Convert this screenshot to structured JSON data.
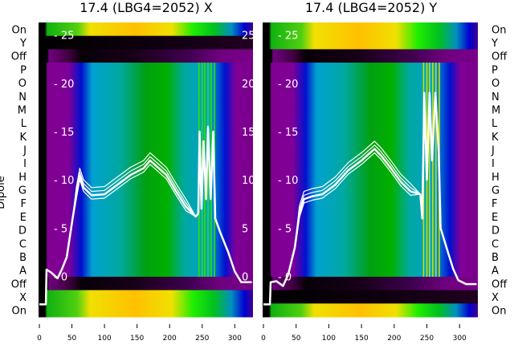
{
  "chart_data": [
    {
      "type": "heatmap",
      "title": "17.4 (LBG4=2052) X",
      "ylabel": "Dipole",
      "row_labels": [
        "On",
        "Y",
        "Off",
        "P",
        "O",
        "N",
        "M",
        "L",
        "K",
        "J",
        "I",
        "H",
        "G",
        "F",
        "E",
        "D",
        "C",
        "B",
        "A",
        "Off",
        "X",
        "On"
      ],
      "row_kinds": [
        "hot",
        "dark",
        "darkpurple",
        "beam",
        "beam",
        "beam",
        "beam",
        "beam",
        "beam",
        "beam",
        "beam",
        "beam",
        "beam",
        "beam",
        "beam",
        "beam",
        "beam",
        "beam",
        "beam",
        "darkpurple",
        "hot",
        "hot"
      ],
      "x_ticks": [
        0,
        50,
        100,
        150,
        200,
        250,
        300
      ],
      "xlim": [
        0,
        328
      ],
      "overlay_y_ticks": [
        0,
        5,
        10,
        15,
        20,
        25
      ],
      "overlay_ylim": [
        -4.2,
        26.3
      ],
      "overlay_line": {
        "color": "#ffffff",
        "points": [
          [
            0,
            -2.9
          ],
          [
            10,
            -2.9
          ],
          [
            11,
            0.7
          ],
          [
            18,
            0.4
          ],
          [
            28,
            -0.2
          ],
          [
            35,
            0.8
          ],
          [
            42,
            2
          ],
          [
            50,
            5.5
          ],
          [
            57,
            8.5
          ],
          [
            62,
            10.4
          ],
          [
            68,
            9.2
          ],
          [
            80,
            8.4
          ],
          [
            100,
            8.5
          ],
          [
            120,
            9.5
          ],
          [
            140,
            10.5
          ],
          [
            160,
            11.2
          ],
          [
            170,
            12
          ],
          [
            180,
            11.4
          ],
          [
            195,
            10.5
          ],
          [
            210,
            8.8
          ],
          [
            225,
            7.2
          ],
          [
            240,
            6.2
          ],
          [
            244,
            6.5
          ],
          [
            246,
            15
          ],
          [
            249,
            7
          ],
          [
            252,
            14
          ],
          [
            256,
            8
          ],
          [
            259,
            15.5
          ],
          [
            263,
            8
          ],
          [
            267,
            15
          ],
          [
            270,
            6
          ],
          [
            278,
            4.5
          ],
          [
            290,
            2.5
          ],
          [
            300,
            0.5
          ],
          [
            310,
            -0.6
          ],
          [
            326,
            -0.6
          ]
        ]
      }
    },
    {
      "type": "heatmap",
      "title": "17.4 (LBG4=2052) Y",
      "row_labels": [
        "On",
        "Y",
        "Off",
        "P",
        "O",
        "N",
        "M",
        "L",
        "K",
        "J",
        "I",
        "H",
        "G",
        "F",
        "E",
        "D",
        "C",
        "B",
        "A",
        "Off",
        "X",
        "On"
      ],
      "row_kinds": [
        "hot",
        "hot",
        "darkpurple",
        "beam",
        "beam",
        "beam",
        "beam",
        "beam",
        "beam",
        "beam",
        "beam",
        "beam",
        "beam",
        "beam",
        "beam",
        "beam",
        "beam",
        "beam",
        "beam",
        "darkpurple",
        "dark",
        "hot"
      ],
      "x_ticks": [
        0,
        50,
        100,
        150,
        200,
        250,
        300
      ],
      "xlim": [
        0,
        328
      ],
      "overlay_y_ticks": [
        0,
        5,
        10,
        15,
        20,
        25
      ],
      "overlay_ylim": [
        -4.2,
        26.3
      ],
      "overlay_line": {
        "color": "#ffffff",
        "points": [
          [
            0,
            -2.9
          ],
          [
            10,
            -2.9
          ],
          [
            11,
            -0.6
          ],
          [
            20,
            -0.5
          ],
          [
            30,
            -1
          ],
          [
            38,
            0.2
          ],
          [
            48,
            3
          ],
          [
            55,
            6.5
          ],
          [
            62,
            8
          ],
          [
            75,
            8.3
          ],
          [
            90,
            8.5
          ],
          [
            110,
            9.5
          ],
          [
            130,
            11
          ],
          [
            150,
            12
          ],
          [
            170,
            13.2
          ],
          [
            180,
            12.5
          ],
          [
            195,
            11.2
          ],
          [
            210,
            9.8
          ],
          [
            225,
            8.8
          ],
          [
            240,
            8.5
          ],
          [
            243,
            6
          ],
          [
            246,
            19
          ],
          [
            250,
            10
          ],
          [
            254,
            19
          ],
          [
            258,
            12
          ],
          [
            263,
            19
          ],
          [
            268,
            13
          ],
          [
            271,
            5
          ],
          [
            280,
            3
          ],
          [
            290,
            0.8
          ],
          [
            298,
            -0.4
          ],
          [
            310,
            -0.8
          ],
          [
            326,
            -0.8
          ]
        ]
      }
    }
  ]
}
